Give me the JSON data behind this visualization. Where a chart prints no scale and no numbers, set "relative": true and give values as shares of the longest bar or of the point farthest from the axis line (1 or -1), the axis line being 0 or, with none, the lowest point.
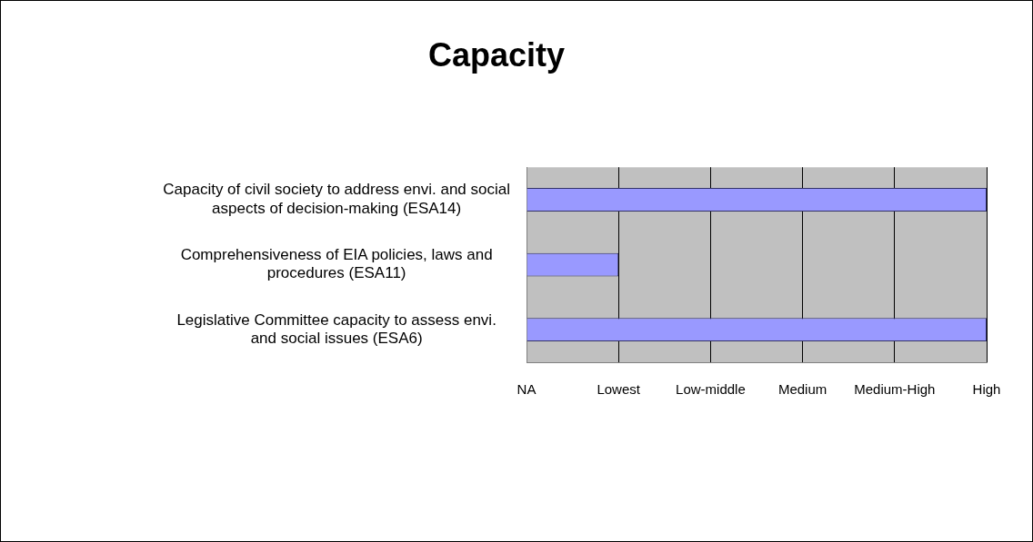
{
  "chart_data": {
    "type": "bar",
    "orientation": "horizontal",
    "title": "Capacity",
    "relative": true,
    "categories": [
      "Capacity of civil society to address envi. and social aspects of decision-making (ESA14)",
      "Comprehensiveness of EIA policies, laws and procedures (ESA11)",
      "Legislative Committee capacity to assess envi. and social issues (ESA6)"
    ],
    "values": [
      1,
      0.2,
      1
    ],
    "color": "#9999ff",
    "annotations": [
      "NA",
      "Lowest",
      "Low-middle",
      "Medium",
      "Medium-High",
      "High"
    ],
    "grid": "x",
    "legend": false
  }
}
